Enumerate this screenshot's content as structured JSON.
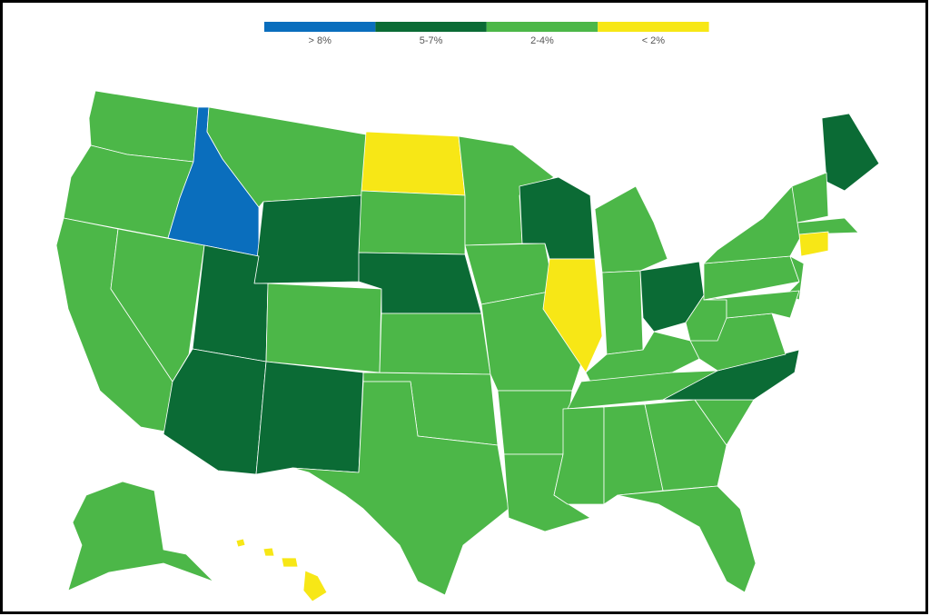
{
  "legend": {
    "items": [
      {
        "label": "> 8%",
        "color": "#0a6ebd"
      },
      {
        "label": "5-7%",
        "color": "#0b6b35"
      },
      {
        "label": "2-4%",
        "color": "#4cb748"
      },
      {
        "label": "< 2%",
        "color": "#f7e716"
      }
    ]
  }
}
